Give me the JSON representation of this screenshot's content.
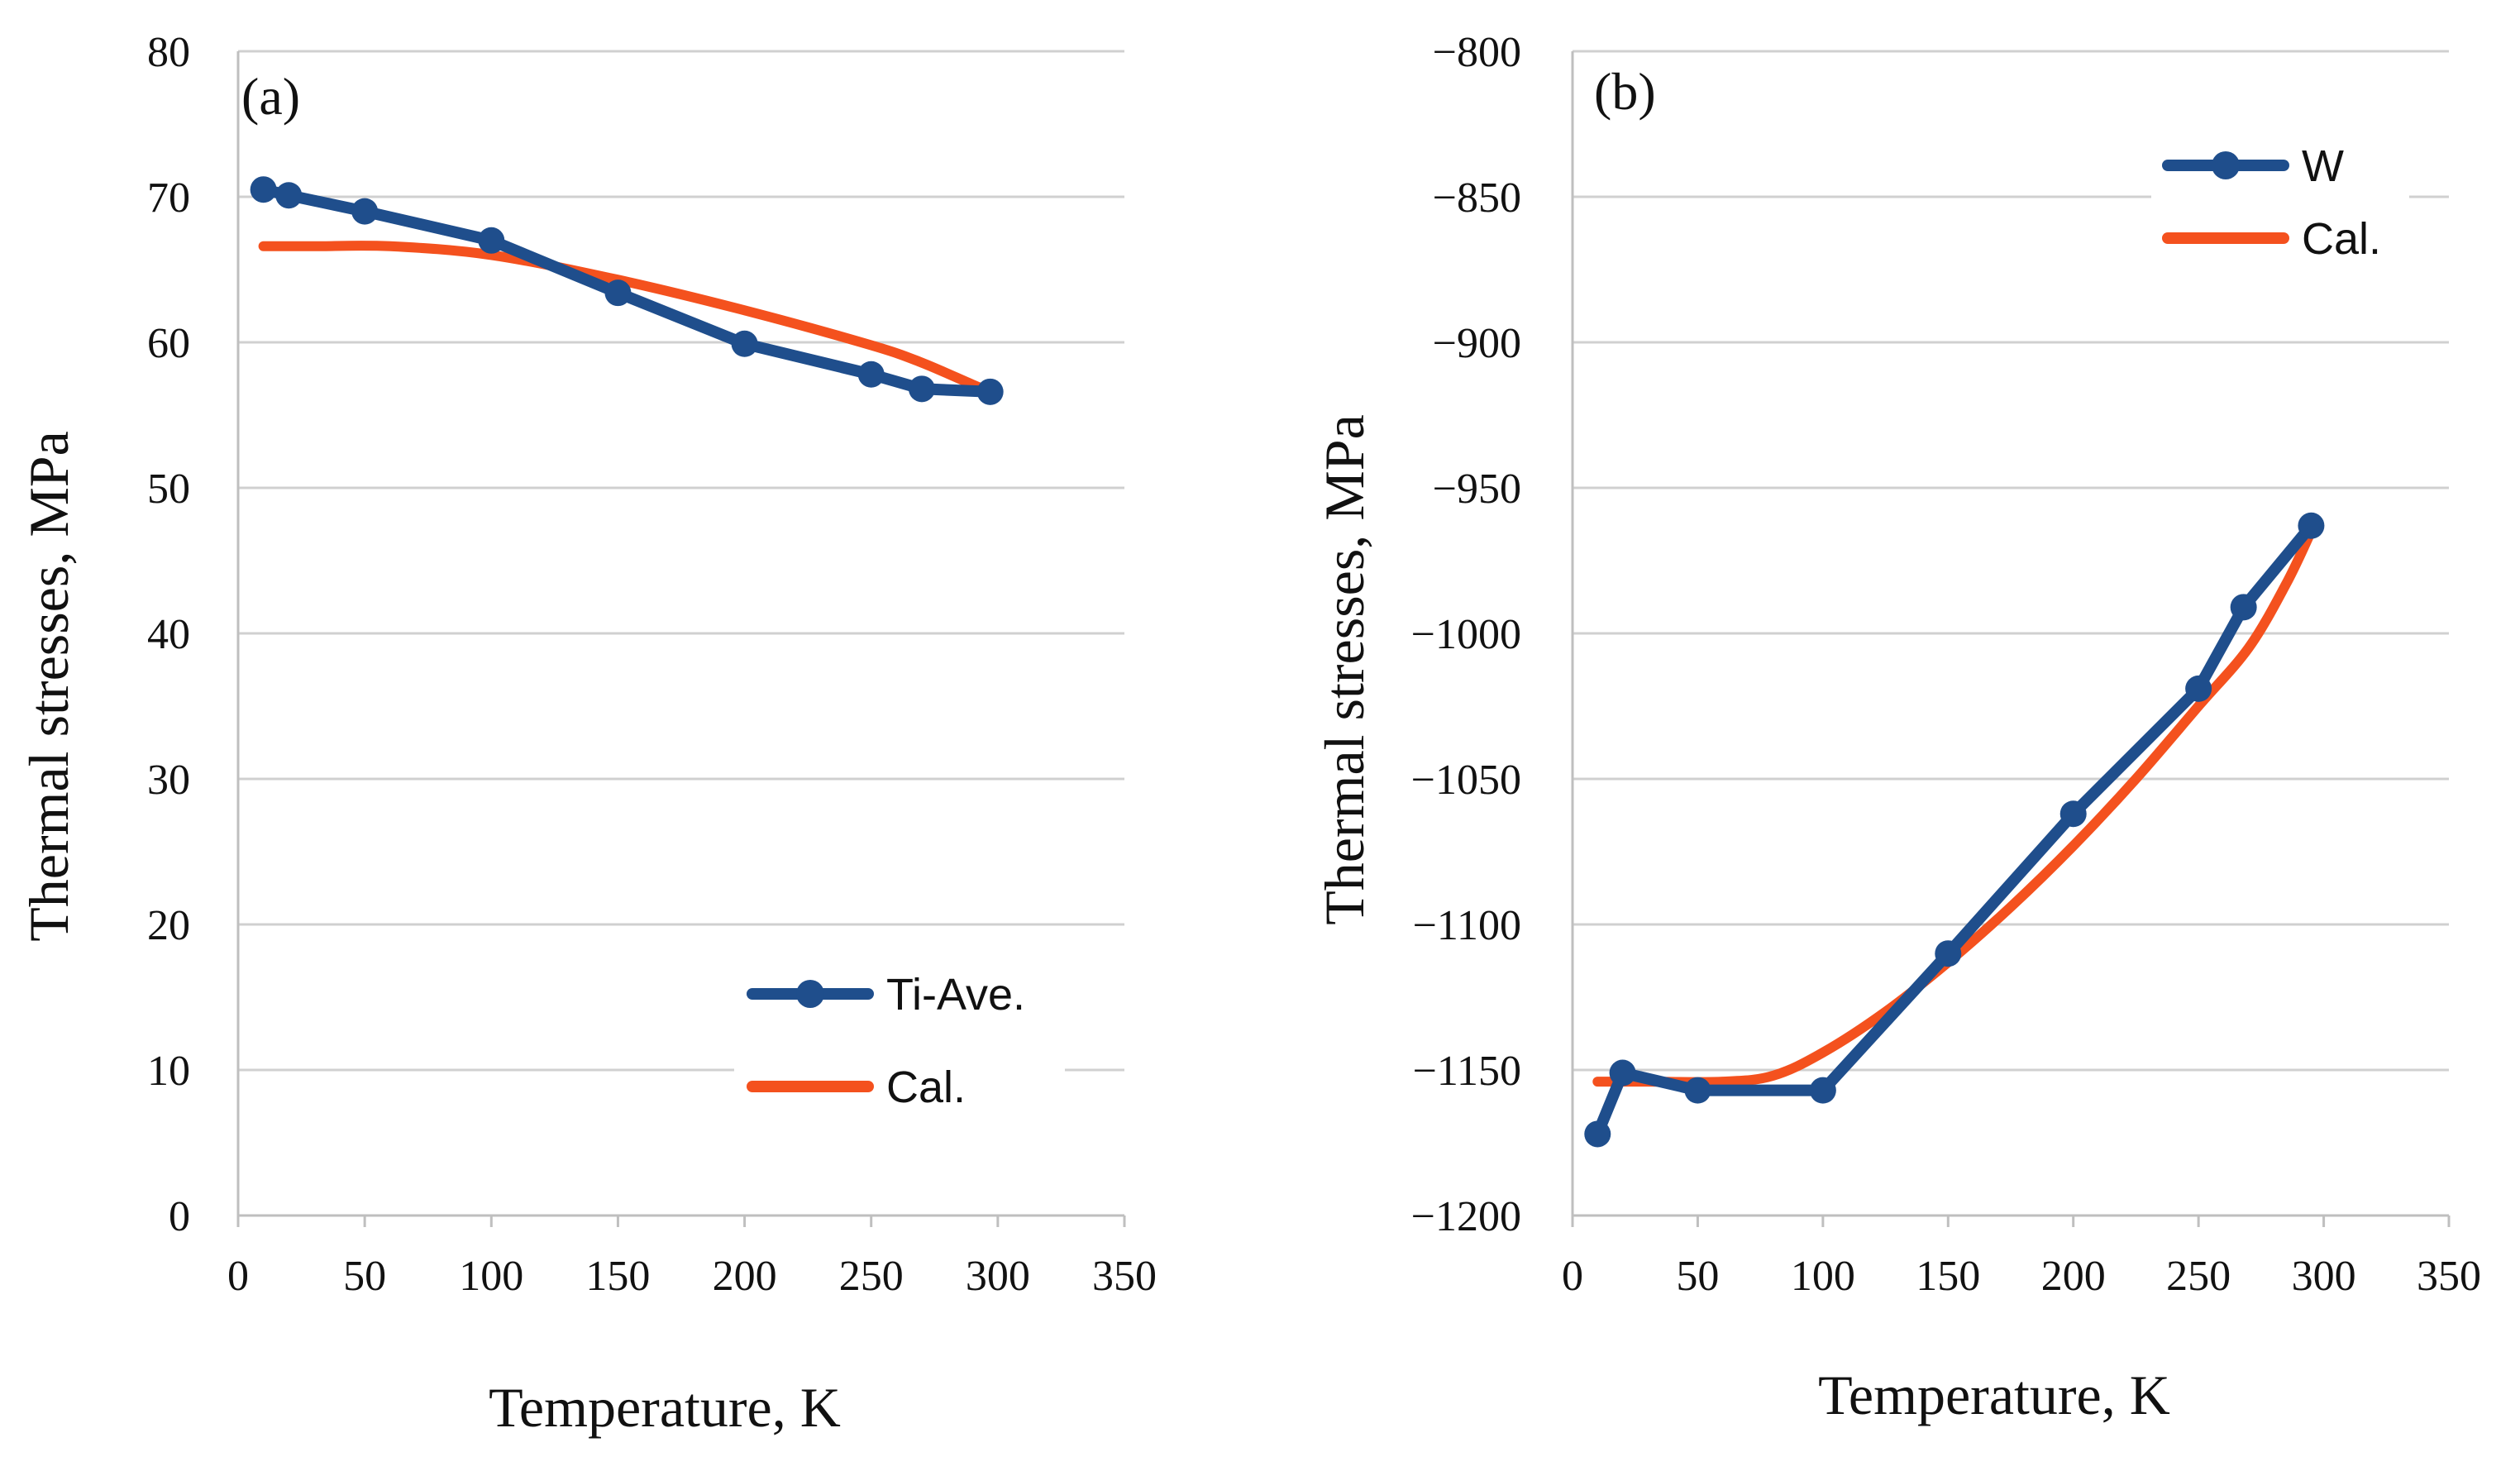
{
  "chart_data": [
    {
      "type": "line",
      "panel_label": "(a)",
      "xlabel": "Temperature, K",
      "ylabel": "Thermal stresses, MPa",
      "xlim": [
        0,
        350
      ],
      "ylim": [
        0,
        80
      ],
      "xticks": [
        0,
        50,
        100,
        150,
        200,
        250,
        300,
        350
      ],
      "yticks": [
        0,
        10,
        20,
        30,
        40,
        50,
        60,
        70,
        80
      ],
      "xtick_labels": [
        "0",
        "50",
        "100",
        "150",
        "200",
        "250",
        "300",
        "350"
      ],
      "ytick_labels": [
        "0",
        "10",
        "20",
        "30",
        "40",
        "50",
        "60",
        "70",
        "80"
      ],
      "grid": true,
      "legend_position": "bottom-right",
      "series": [
        {
          "name": "Ti-Ave.",
          "color": "#1f4e8c",
          "markers": true,
          "x": [
            10,
            20,
            50,
            100,
            150,
            200,
            250,
            270,
            297
          ],
          "y": [
            70.5,
            70.1,
            69.0,
            67.0,
            63.4,
            59.9,
            57.8,
            56.8,
            56.6
          ]
        },
        {
          "name": "Cal.",
          "color": "#f4511e",
          "markers": false,
          "x": [
            10,
            30,
            60,
            100,
            150,
            200,
            250,
            270,
            290,
            297
          ],
          "y": [
            66.6,
            66.6,
            66.6,
            66.0,
            64.3,
            62.2,
            59.8,
            58.6,
            57.1,
            56.6
          ]
        }
      ]
    },
    {
      "type": "line",
      "panel_label": "(b)",
      "xlabel": "Temperature, K",
      "ylabel": "Thermal stresses, MPa",
      "xlim": [
        0,
        350
      ],
      "ylim": [
        -1200,
        -800
      ],
      "xticks": [
        0,
        50,
        100,
        150,
        200,
        250,
        300,
        350
      ],
      "yticks": [
        -1200,
        -1150,
        -1100,
        -1050,
        -1000,
        -950,
        -900,
        -850,
        -800
      ],
      "xtick_labels": [
        "0",
        "50",
        "100",
        "150",
        "200",
        "250",
        "300",
        "350"
      ],
      "ytick_labels": [
        "−1200",
        "−1150",
        "−1100",
        "−1050",
        "−1000",
        "−950",
        "−900",
        "−850",
        "−800"
      ],
      "grid": true,
      "legend_position": "top-right",
      "series": [
        {
          "name": "W",
          "color": "#1f4e8c",
          "markers": true,
          "x": [
            10,
            20,
            50,
            100,
            150,
            200,
            250,
            268,
            295
          ],
          "y": [
            -1172,
            -1151,
            -1157,
            -1157,
            -1110,
            -1062,
            -1019,
            -991,
            -963
          ]
        },
        {
          "name": "Cal.",
          "color": "#f4511e",
          "markers": false,
          "x": [
            10,
            30,
            60,
            80,
            100,
            125,
            150,
            175,
            200,
            225,
            250,
            270,
            285,
            295
          ],
          "y": [
            -1154,
            -1154,
            -1154,
            -1152,
            -1144,
            -1130,
            -1113,
            -1094,
            -1073,
            -1050,
            -1025,
            -1005,
            -983,
            -965
          ]
        }
      ]
    }
  ]
}
